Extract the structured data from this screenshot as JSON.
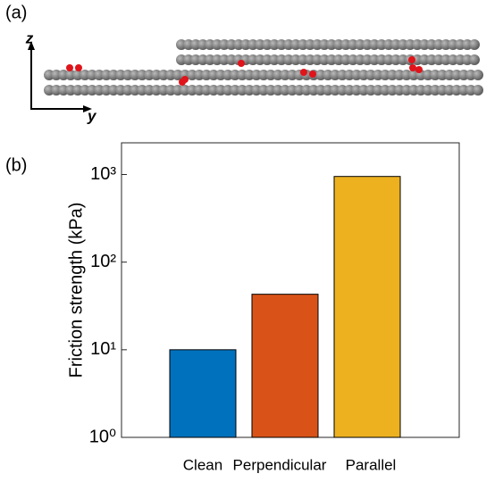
{
  "figure": {
    "panel_a_label": "(a)",
    "axis_z": "z",
    "axis_y": "y",
    "panel_b_label": "(b)"
  },
  "chart_data": {
    "type": "bar",
    "y_label": "Friction strength (kPa)",
    "categories": [
      "Clean",
      "Perpendicular",
      "Parallel"
    ],
    "values": [
      10,
      43,
      950
    ],
    "colors": [
      "#0072bd",
      "#d95319",
      "#edb120"
    ],
    "ylim": [
      1,
      2300
    ],
    "log_scale": true,
    "yticks": [
      {
        "value": 1,
        "label": "10⁰"
      },
      {
        "value": 10,
        "label": "10¹"
      },
      {
        "value": 100,
        "label": "10²"
      },
      {
        "value": 1000,
        "label": "10³"
      }
    ]
  }
}
